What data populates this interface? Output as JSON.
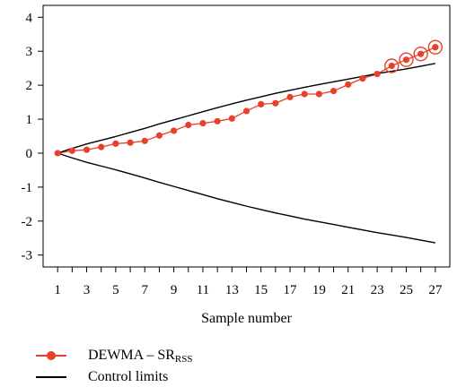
{
  "chart_data": {
    "type": "line",
    "xlabel": "Sample number",
    "ylabel": "",
    "xlim": [
      0,
      28
    ],
    "ylim": [
      -3.35,
      4.35
    ],
    "x_ticks": [
      1,
      3,
      5,
      7,
      9,
      11,
      13,
      15,
      17,
      19,
      21,
      23,
      25,
      27
    ],
    "y_ticks": [
      -3,
      -2,
      -1,
      0,
      1,
      2,
      3,
      4
    ],
    "x": [
      1,
      2,
      3,
      4,
      5,
      6,
      7,
      8,
      9,
      10,
      11,
      12,
      13,
      14,
      15,
      16,
      17,
      18,
      19,
      20,
      21,
      22,
      23,
      24,
      25,
      26,
      27
    ],
    "series": [
      {
        "name": "DEWMA – SR",
        "name_subscript": "RSS",
        "color": "#e8402a",
        "marker": "circle",
        "values": [
          0.0,
          0.07,
          0.1,
          0.18,
          0.28,
          0.31,
          0.36,
          0.52,
          0.66,
          0.83,
          0.88,
          0.94,
          1.02,
          1.24,
          1.44,
          1.47,
          1.65,
          1.74,
          1.74,
          1.83,
          2.02,
          2.2,
          2.33,
          2.57,
          2.75,
          2.92,
          3.12
        ],
        "out_of_control": [
          24,
          25,
          26,
          27
        ]
      },
      {
        "name": "Control limits",
        "role": "upper",
        "color": "#000000",
        "values": [
          0.0,
          0.14,
          0.27,
          0.38,
          0.49,
          0.61,
          0.73,
          0.86,
          0.98,
          1.1,
          1.22,
          1.34,
          1.45,
          1.56,
          1.66,
          1.76,
          1.85,
          1.94,
          2.02,
          2.1,
          2.18,
          2.26,
          2.34,
          2.41,
          2.48,
          2.56,
          2.64
        ]
      },
      {
        "name": "Control limits",
        "role": "lower",
        "color": "#000000",
        "values": [
          0.0,
          -0.14,
          -0.27,
          -0.38,
          -0.49,
          -0.61,
          -0.73,
          -0.86,
          -0.98,
          -1.1,
          -1.22,
          -1.34,
          -1.45,
          -1.56,
          -1.66,
          -1.76,
          -1.85,
          -1.94,
          -2.02,
          -2.1,
          -2.18,
          -2.26,
          -2.34,
          -2.41,
          -2.48,
          -2.56,
          -2.64
        ]
      }
    ],
    "legend": {
      "position": "bottom-left",
      "items": [
        {
          "label": "DEWMA – SR",
          "subscript": "RSS",
          "color": "#e8402a"
        },
        {
          "label": "Control limits",
          "subscript": "",
          "color": "#000000"
        }
      ]
    }
  }
}
